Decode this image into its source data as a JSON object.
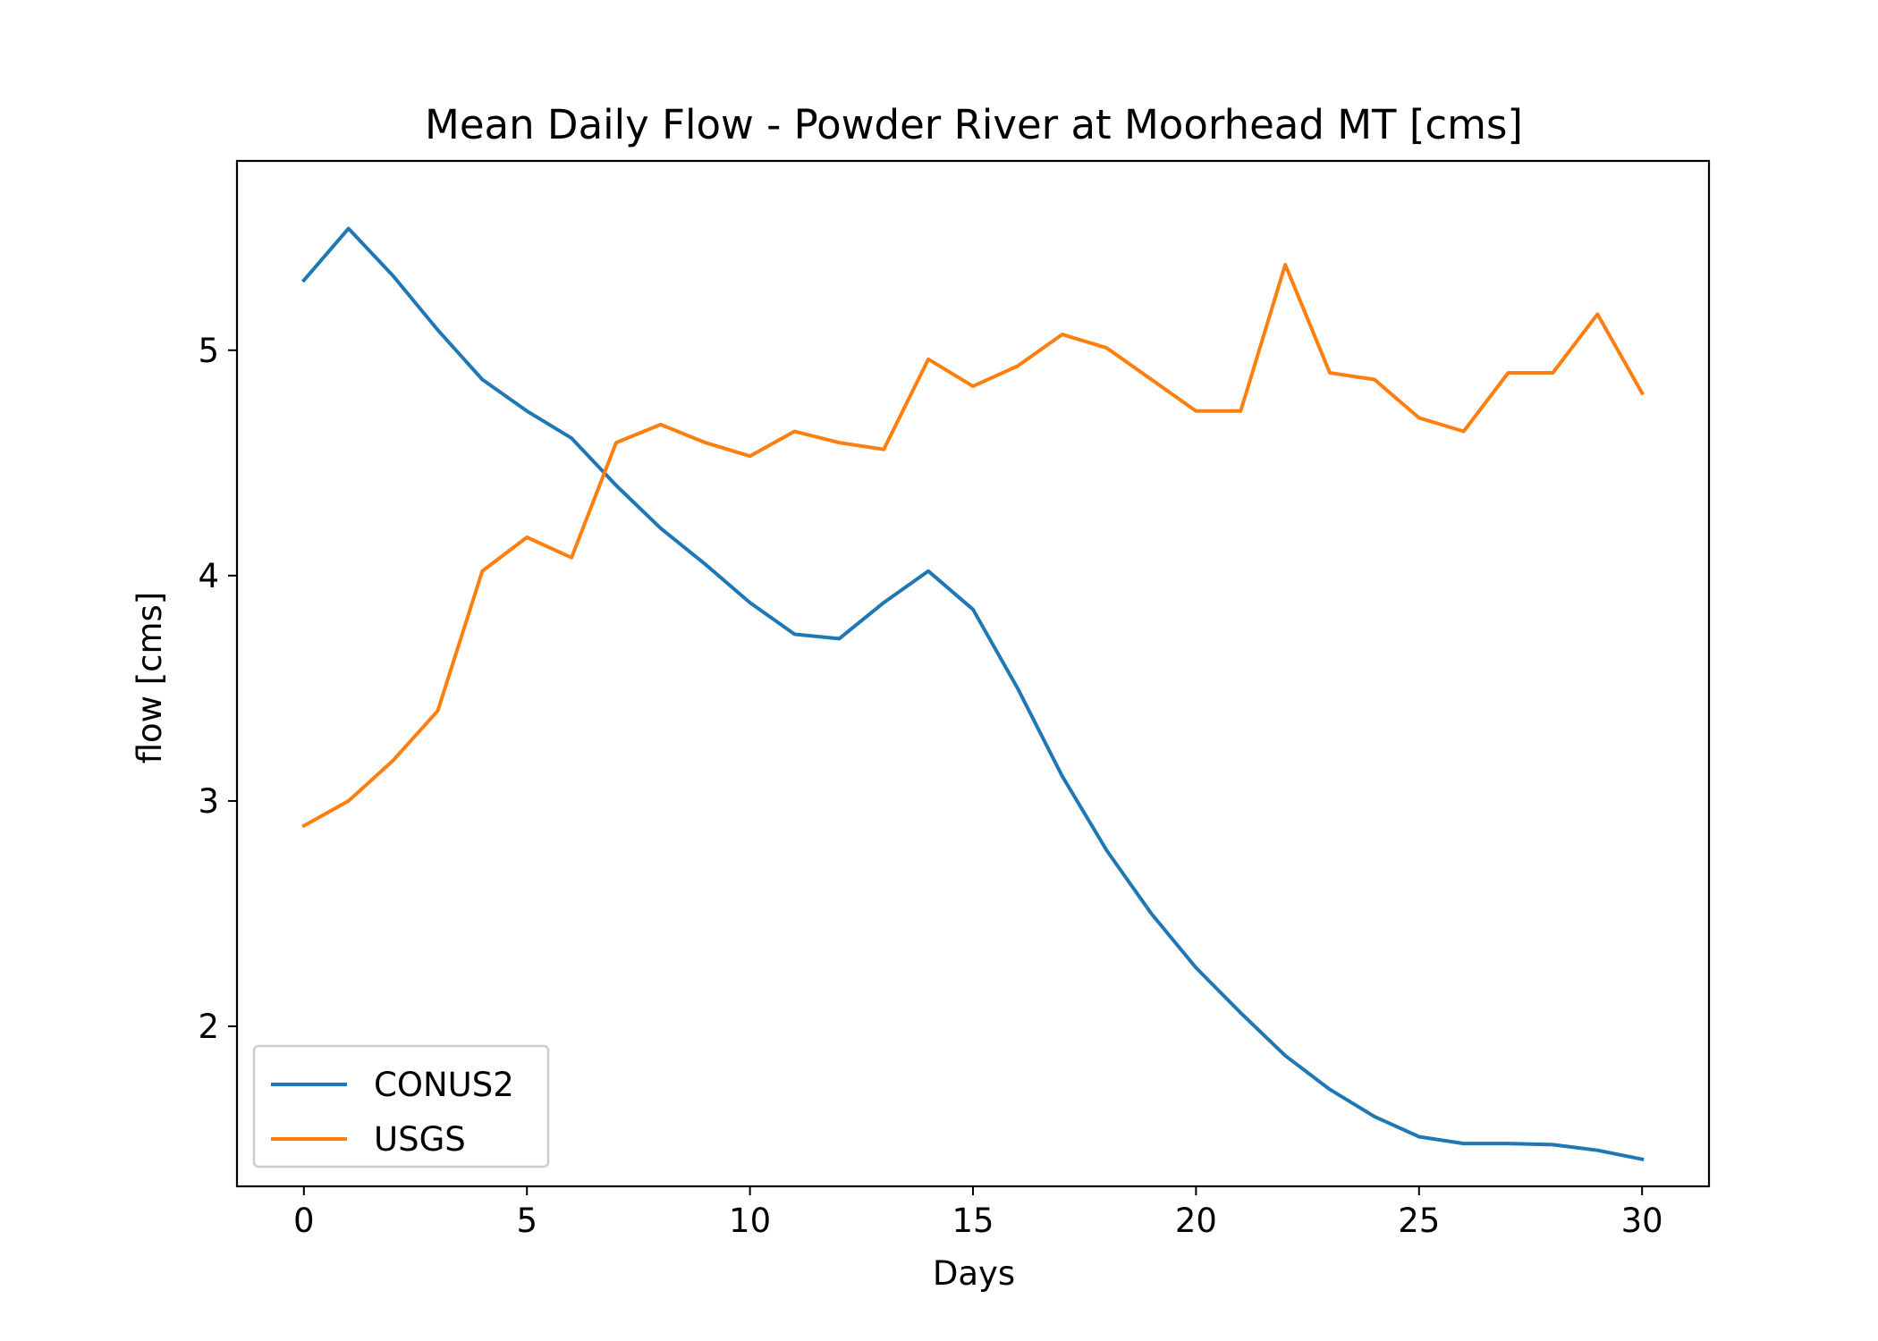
{
  "chart_data": {
    "type": "line",
    "title": "Mean Daily Flow - Powder River at Moorhead MT [cms]",
    "xlabel": "Days",
    "ylabel": "flow [cms]",
    "xlim": [
      -1.5,
      31.5
    ],
    "ylim": [
      1.29,
      5.84
    ],
    "xticks": [
      0,
      5,
      10,
      15,
      20,
      25,
      30
    ],
    "yticks": [
      2,
      3,
      4,
      5
    ],
    "grid": false,
    "legend_position": "lower-left",
    "x": [
      0,
      1,
      2,
      3,
      4,
      5,
      6,
      7,
      8,
      9,
      10,
      11,
      12,
      13,
      14,
      15,
      16,
      17,
      18,
      19,
      20,
      21,
      22,
      23,
      24,
      25,
      26,
      27,
      28,
      29,
      30
    ],
    "series": [
      {
        "name": "CONUS2",
        "color": "#1f77b4",
        "values": [
          5.31,
          5.54,
          5.33,
          5.09,
          4.87,
          4.73,
          4.61,
          4.4,
          4.21,
          4.05,
          3.88,
          3.74,
          3.72,
          3.88,
          4.02,
          3.85,
          3.5,
          3.11,
          2.78,
          2.5,
          2.26,
          2.06,
          1.87,
          1.72,
          1.6,
          1.51,
          1.48,
          1.48,
          1.475,
          1.45,
          1.41
        ]
      },
      {
        "name": "USGS",
        "color": "#ff7f0e",
        "values": [
          2.89,
          3.0,
          3.18,
          3.4,
          4.02,
          4.17,
          4.08,
          4.59,
          4.67,
          4.59,
          4.53,
          4.64,
          4.59,
          4.56,
          4.96,
          4.84,
          4.93,
          5.07,
          5.01,
          4.87,
          4.73,
          4.73,
          5.38,
          4.9,
          4.87,
          4.7,
          4.64,
          4.9,
          4.9,
          5.16,
          4.81
        ]
      }
    ]
  }
}
